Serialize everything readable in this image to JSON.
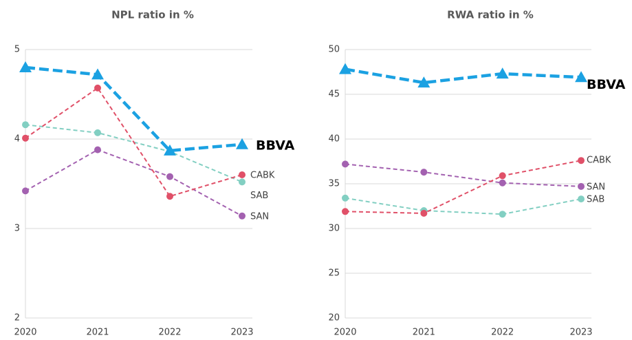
{
  "chart_data": [
    {
      "type": "line",
      "title": "NPL ratio in %",
      "categories": [
        "2020",
        "2021",
        "2022",
        "2023"
      ],
      "ylim": [
        2,
        5
      ],
      "yticks": [
        2,
        3,
        4,
        5
      ],
      "grid": true,
      "series": [
        {
          "name": "BBVA",
          "color": "#1ba1e2",
          "values": [
            4.8,
            4.72,
            3.87,
            3.94
          ]
        },
        {
          "name": "CABK",
          "color": "#e05068",
          "values": [
            4.01,
            4.57,
            3.36,
            3.6
          ]
        },
        {
          "name": "SAB",
          "color": "#82cfc2",
          "values": [
            4.16,
            4.07,
            3.86,
            3.52
          ]
        },
        {
          "name": "SAN",
          "color": "#a361b0",
          "values": [
            3.42,
            3.88,
            3.58,
            3.14
          ]
        }
      ]
    },
    {
      "type": "line",
      "title": "RWA ratio in %",
      "categories": [
        "2020",
        "2021",
        "2022",
        "2023"
      ],
      "ylim": [
        20,
        50
      ],
      "yticks": [
        20,
        25,
        30,
        35,
        40,
        45,
        50
      ],
      "grid": true,
      "series": [
        {
          "name": "BBVA",
          "color": "#1ba1e2",
          "values": [
            47.8,
            46.3,
            47.3,
            46.9
          ]
        },
        {
          "name": "CABK",
          "color": "#e05068",
          "values": [
            31.9,
            31.7,
            35.9,
            37.6
          ]
        },
        {
          "name": "SAN",
          "color": "#a361b0",
          "values": [
            37.2,
            36.3,
            35.1,
            34.7
          ]
        },
        {
          "name": "SAB",
          "color": "#82cfc2",
          "values": [
            33.4,
            32.0,
            31.6,
            33.3
          ]
        }
      ]
    }
  ]
}
